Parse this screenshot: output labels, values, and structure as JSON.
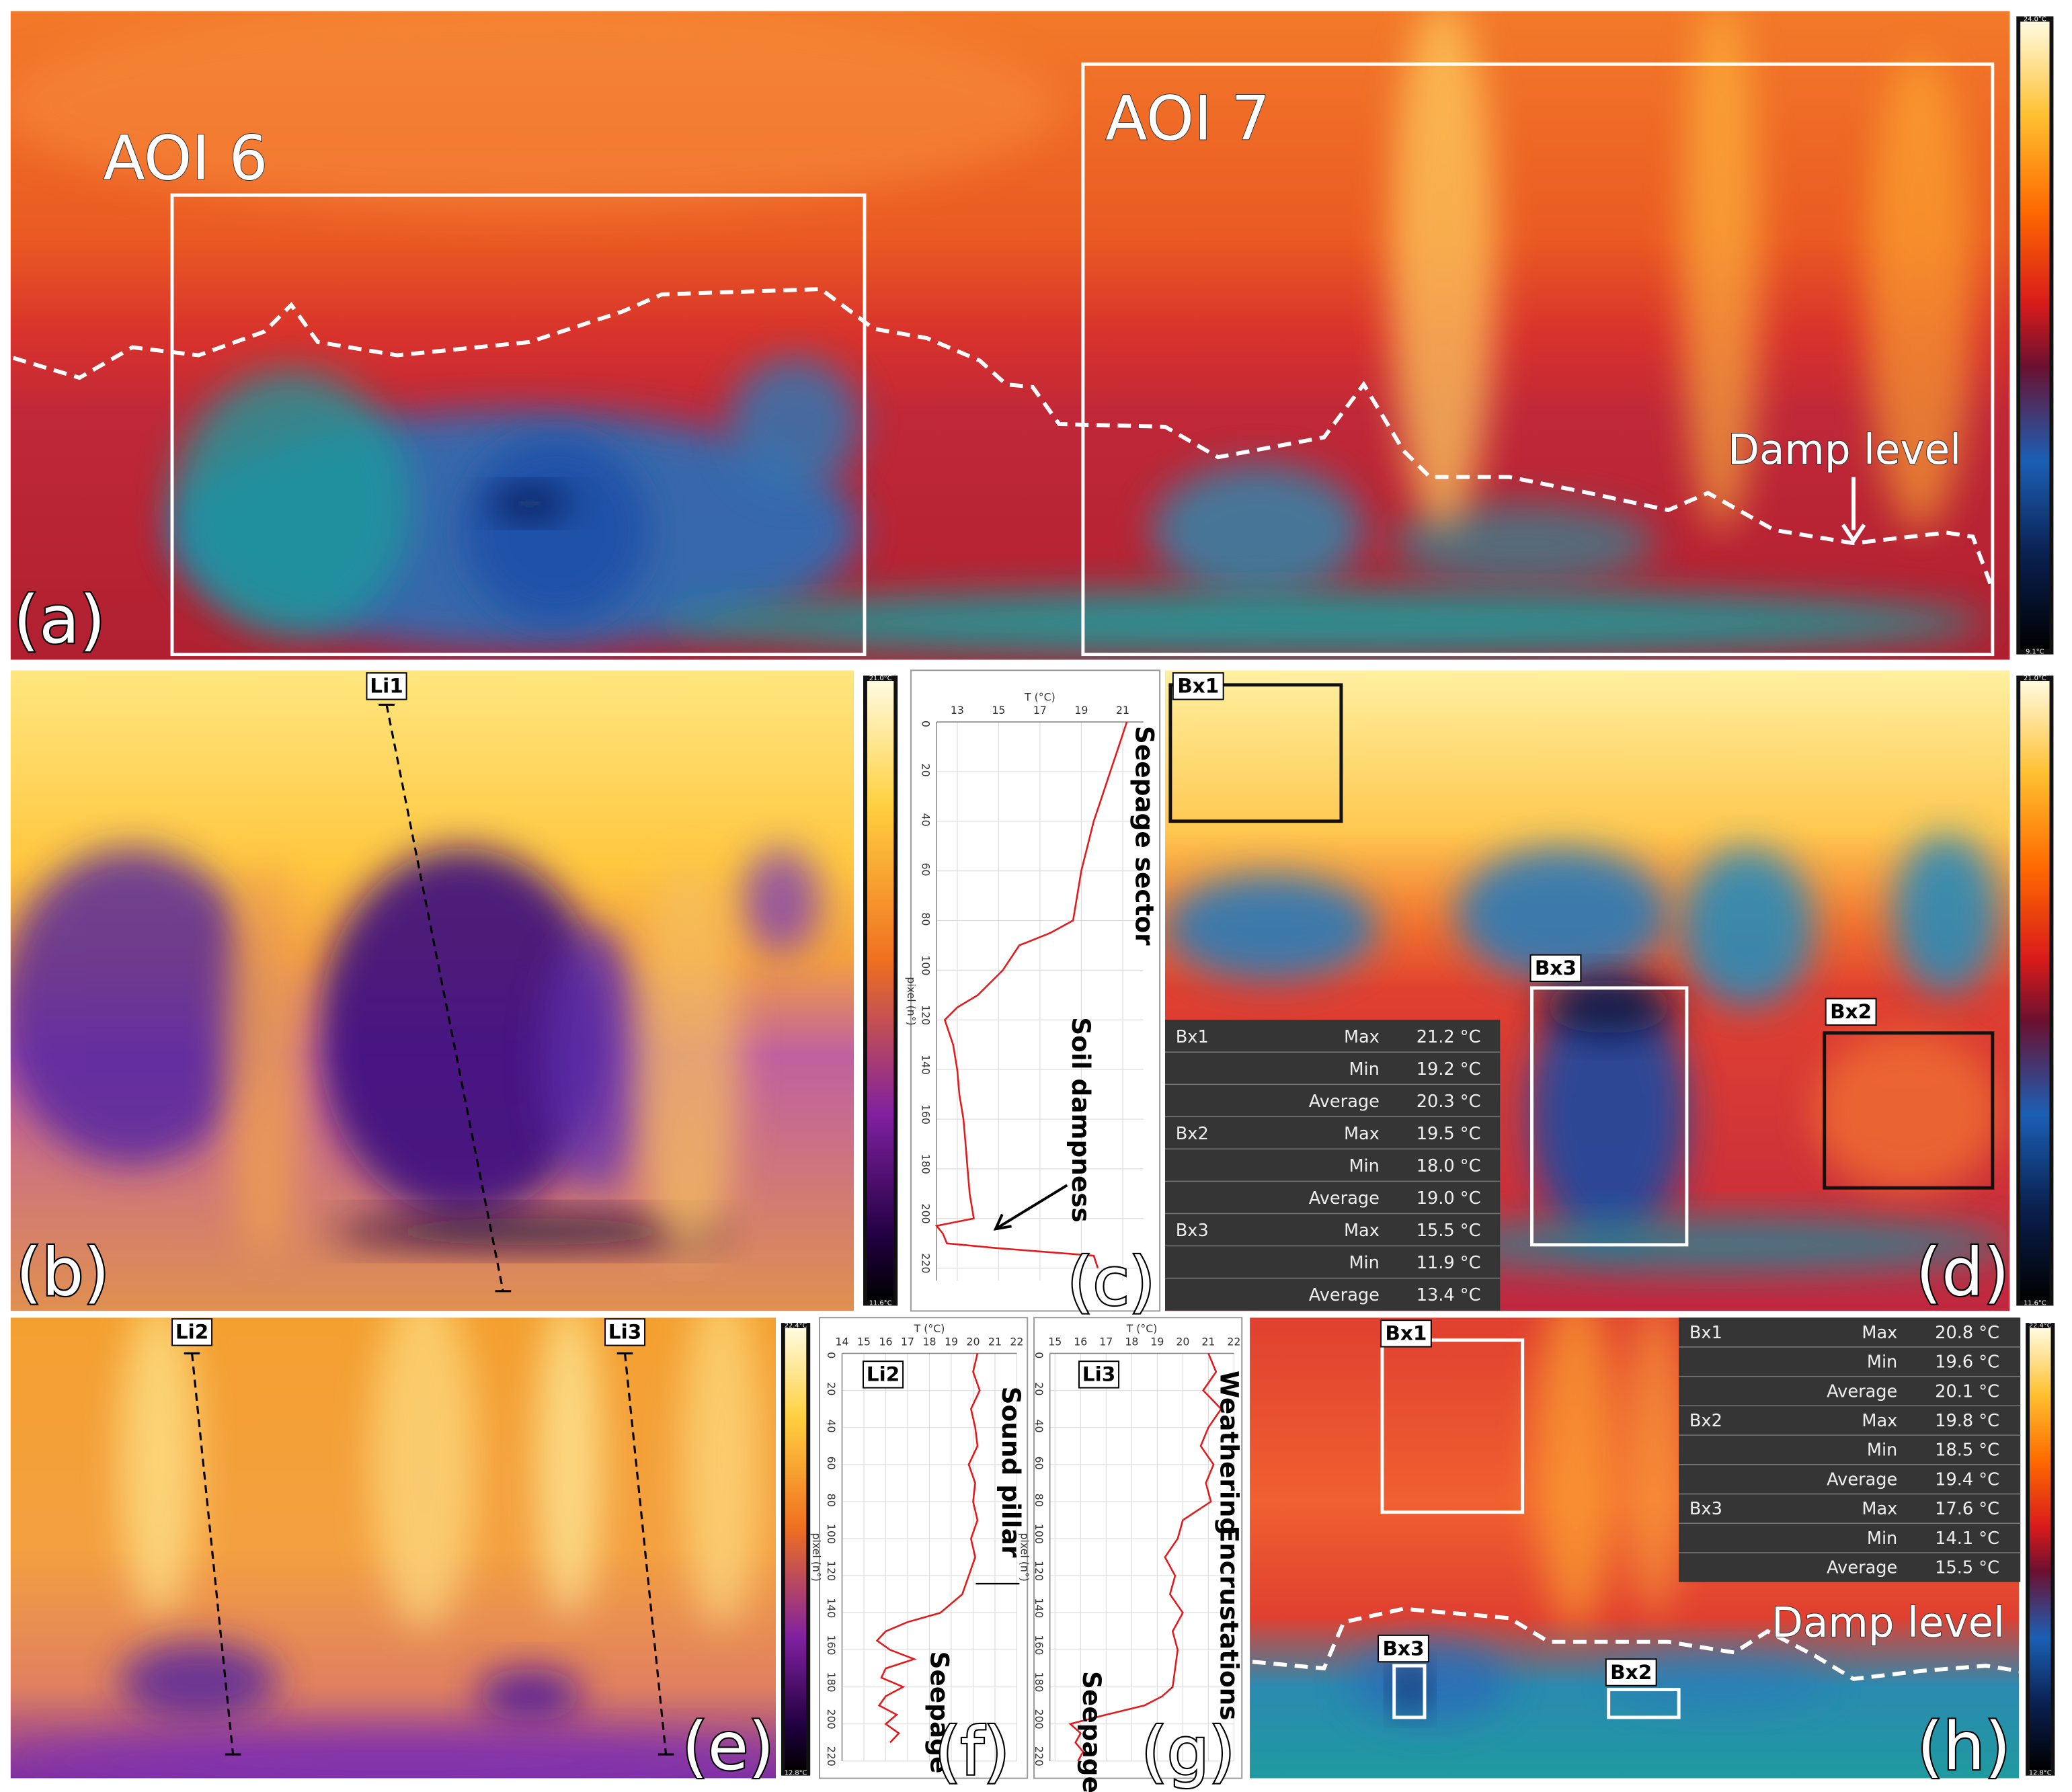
{
  "panels": {
    "a": {
      "label": "(a)",
      "aoi": [
        "AOI 6",
        "AOI 7"
      ],
      "annotation": "Damp level",
      "scale": [
        "24.0°C",
        "9.1°C"
      ]
    },
    "b": {
      "label": "(b)",
      "line": "Li1",
      "scale": [
        "21.0°C",
        "11.6°C"
      ]
    },
    "d": {
      "label": "(d)",
      "boxes": [
        "Bx1",
        "Bx2",
        "Bx3"
      ],
      "scale": [
        "21.0°C",
        "11.6°C"
      ],
      "table": [
        {
          "box": "Bx1",
          "rows": [
            [
              "Max",
              "21.2 °C"
            ],
            [
              "Min",
              "19.2 °C"
            ],
            [
              "Average",
              "20.3 °C"
            ]
          ]
        },
        {
          "box": "Bx2",
          "rows": [
            [
              "Max",
              "19.5 °C"
            ],
            [
              "Min",
              "18.0 °C"
            ],
            [
              "Average",
              "19.0 °C"
            ]
          ]
        },
        {
          "box": "Bx3",
          "rows": [
            [
              "Max",
              "15.5 °C"
            ],
            [
              "Min",
              "11.9 °C"
            ],
            [
              "Average",
              "13.4 °C"
            ]
          ]
        }
      ]
    },
    "e": {
      "label": "(e)",
      "lines": [
        "Li2",
        "Li3"
      ],
      "scale": [
        "22.4°C",
        "12.8°C"
      ]
    },
    "h": {
      "label": "(h)",
      "boxes": [
        "Bx1",
        "Bx2",
        "Bx3"
      ],
      "annotation": "Damp level",
      "scale": [
        "22.4°C",
        "12.8°C"
      ],
      "table": [
        {
          "box": "Bx1",
          "rows": [
            [
              "Max",
              "20.8 °C"
            ],
            [
              "Min",
              "19.6 °C"
            ],
            [
              "Average",
              "20.1 °C"
            ]
          ]
        },
        {
          "box": "Bx2",
          "rows": [
            [
              "Max",
              "19.8 °C"
            ],
            [
              "Min",
              "18.5 °C"
            ],
            [
              "Average",
              "19.4 °C"
            ]
          ]
        },
        {
          "box": "Bx3",
          "rows": [
            [
              "Max",
              "17.6 °C"
            ],
            [
              "Min",
              "14.1 °C"
            ],
            [
              "Average",
              "15.5 °C"
            ]
          ]
        }
      ]
    }
  },
  "chart_data": [
    {
      "type": "line",
      "label": "(c)",
      "xlabel": "pixel (n°)",
      "ylabel": "T (°C)",
      "color": "#e31a1c",
      "grid": true,
      "x": [
        0,
        10,
        20,
        30,
        40,
        50,
        60,
        70,
        80,
        85,
        90,
        100,
        110,
        115,
        120,
        130,
        140,
        150,
        160,
        170,
        180,
        190,
        200,
        203,
        206,
        210,
        212,
        215,
        220
      ],
      "values": [
        21.2,
        20.8,
        20.4,
        20.0,
        19.6,
        19.3,
        19.0,
        18.8,
        18.6,
        17.5,
        16.0,
        15.2,
        14.0,
        13.0,
        12.4,
        12.8,
        13.0,
        13.1,
        13.3,
        13.4,
        13.5,
        13.6,
        13.8,
        12.0,
        12.3,
        12.5,
        15.0,
        19.6,
        19.8
      ],
      "xlim": [
        0,
        225
      ],
      "xticks": [
        0,
        20,
        40,
        60,
        80,
        100,
        120,
        140,
        160,
        180,
        200,
        220
      ],
      "ylim": [
        12,
        22
      ],
      "yticks": [
        13,
        15,
        17,
        19,
        21
      ],
      "annotations": [
        "Seepage sector",
        "Soil dampness"
      ]
    },
    {
      "type": "line",
      "label": "(f)",
      "line": "Li2",
      "xlabel": "pixel (n°)",
      "ylabel": "T (°C)",
      "color": "#e31a1c",
      "grid": true,
      "x": [
        0,
        10,
        20,
        30,
        40,
        50,
        60,
        70,
        80,
        90,
        100,
        110,
        120,
        130,
        140,
        145,
        150,
        155,
        160,
        165,
        170,
        175,
        180,
        185,
        190,
        195,
        200,
        205,
        210
      ],
      "values": [
        20.2,
        20.0,
        20.3,
        19.9,
        20.1,
        20.2,
        19.8,
        20.1,
        20.0,
        20.2,
        19.9,
        20.1,
        19.8,
        19.5,
        18.5,
        17.0,
        16.0,
        15.6,
        16.2,
        17.3,
        16.0,
        15.8,
        16.8,
        16.0,
        15.7,
        16.5,
        16.0,
        16.6,
        16.2
      ],
      "xlim": [
        0,
        220
      ],
      "xticks": [
        0,
        20,
        40,
        60,
        80,
        100,
        120,
        140,
        160,
        180,
        200,
        220
      ],
      "ylim": [
        14,
        22
      ],
      "yticks": [
        14,
        15,
        16,
        17,
        18,
        19,
        20,
        21,
        22
      ],
      "annotations": [
        "Sound pillar",
        "Seepage"
      ]
    },
    {
      "type": "line",
      "label": "(g)",
      "line": "Li3",
      "xlabel": "pixel (n°)",
      "ylabel": "T (°C)",
      "color": "#e31a1c",
      "grid": true,
      "x": [
        0,
        10,
        20,
        30,
        40,
        50,
        60,
        70,
        80,
        90,
        100,
        110,
        120,
        130,
        140,
        150,
        160,
        170,
        180,
        185,
        190,
        195,
        200,
        205,
        210,
        215,
        220
      ],
      "values": [
        21.0,
        21.3,
        20.8,
        21.5,
        21.0,
        20.7,
        21.2,
        20.9,
        21.1,
        20.0,
        19.8,
        19.3,
        19.7,
        19.5,
        20.0,
        19.6,
        19.8,
        19.7,
        19.6,
        19.2,
        18.5,
        17.0,
        15.6,
        16.0,
        15.8,
        16.1,
        15.9
      ],
      "xlim": [
        0,
        220
      ],
      "xticks": [
        0,
        20,
        40,
        60,
        80,
        100,
        120,
        140,
        160,
        180,
        200,
        220
      ],
      "ylim": [
        14.8,
        22
      ],
      "yticks": [
        15,
        16,
        17,
        18,
        19,
        20,
        21,
        22
      ],
      "annotations": [
        "Weathering",
        "Encrustations",
        "Seepage"
      ]
    }
  ]
}
